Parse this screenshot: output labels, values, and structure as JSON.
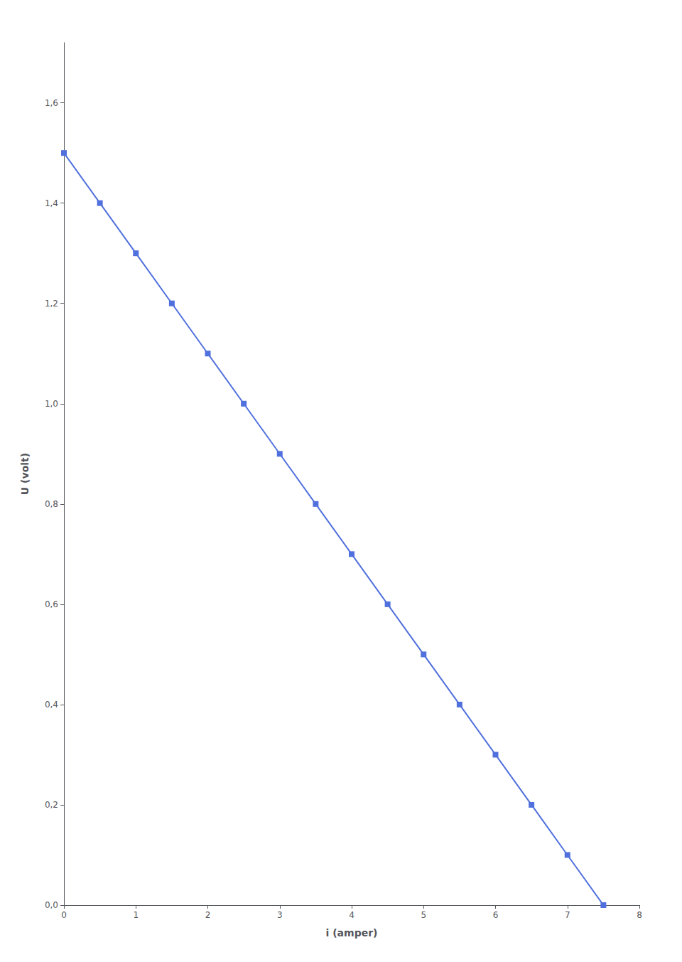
{
  "chart_data": {
    "type": "line",
    "x": [
      0.0,
      0.5,
      1.0,
      1.5,
      2.0,
      2.5,
      3.0,
      3.5,
      4.0,
      4.5,
      5.0,
      5.5,
      6.0,
      6.5,
      7.0,
      7.5
    ],
    "values": [
      1.5,
      1.4,
      1.3,
      1.2,
      1.1,
      1.0,
      0.9,
      0.8,
      0.7,
      0.6,
      0.5,
      0.4,
      0.3,
      0.2,
      0.1,
      0.0
    ],
    "xlabel": "i (amper)",
    "ylabel": "U (volt)",
    "xlim": [
      0,
      8
    ],
    "ylim": [
      0.0,
      1.72
    ],
    "xticks": [
      0,
      1,
      2,
      3,
      4,
      5,
      6,
      7,
      8
    ],
    "yticks": [
      {
        "value": 0.0,
        "label": "0,0"
      },
      {
        "value": 0.2,
        "label": "0,2"
      },
      {
        "value": 0.4,
        "label": "0,4"
      },
      {
        "value": 0.6,
        "label": "0,6"
      },
      {
        "value": 0.8,
        "label": "0,8"
      },
      {
        "value": 1.0,
        "label": "1,0"
      },
      {
        "value": 1.2,
        "label": "1,2"
      },
      {
        "value": 1.4,
        "label": "1,4"
      },
      {
        "value": 1.6,
        "label": "1,6"
      }
    ],
    "marker": "square",
    "grid": false
  }
}
